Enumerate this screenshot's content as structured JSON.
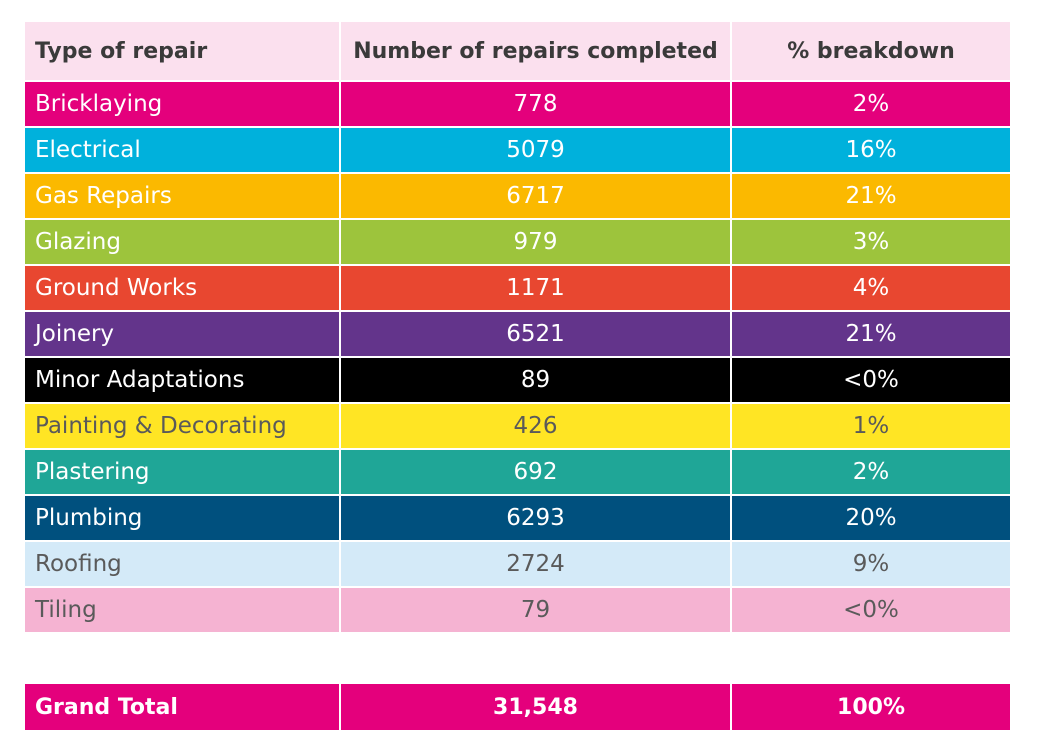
{
  "table": {
    "headers": [
      "Type of repair",
      "Number of repairs completed",
      "% breakdown"
    ],
    "rows": [
      {
        "type": "Bricklaying",
        "count": "778",
        "pct": "2%",
        "bg": "#e4007c",
        "fg": "#ffffff"
      },
      {
        "type": "Electrical",
        "count": "5079",
        "pct": "16%",
        "bg": "#00b1dc",
        "fg": "#ffffff"
      },
      {
        "type": "Gas Repairs",
        "count": "6717",
        "pct": "21%",
        "bg": "#fbb900",
        "fg": "#ffffff"
      },
      {
        "type": "Glazing",
        "count": "979",
        "pct": "3%",
        "bg": "#9dc43c",
        "fg": "#ffffff"
      },
      {
        "type": "Ground Works",
        "count": "1171",
        "pct": "4%",
        "bg": "#e84730",
        "fg": "#ffffff"
      },
      {
        "type": "Joinery",
        "count": "6521",
        "pct": "21%",
        "bg": "#63348b",
        "fg": "#ffffff"
      },
      {
        "type": "Minor Adaptations",
        "count": "89",
        "pct": "<0%",
        "bg": "#000000",
        "fg": "#ffffff"
      },
      {
        "type": "Painting & Decorating",
        "count": "426",
        "pct": "1%",
        "bg": "#ffe524",
        "fg": "#5a5a5a"
      },
      {
        "type": "Plastering",
        "count": "692",
        "pct": "2%",
        "bg": "#1fa697",
        "fg": "#ffffff"
      },
      {
        "type": "Plumbing",
        "count": "6293",
        "pct": "20%",
        "bg": "#00507e",
        "fg": "#ffffff"
      },
      {
        "type": "Roofing",
        "count": "2724",
        "pct": "9%",
        "bg": "#d4eaf8",
        "fg": "#5a5a5a"
      },
      {
        "type": "Tiling",
        "count": "79",
        "pct": "<0%",
        "bg": "#f5b3d2",
        "fg": "#5a5a5a"
      }
    ],
    "total": {
      "label": "Grand Total",
      "count": "31,548",
      "pct": "100%"
    }
  },
  "colors": {
    "header_bg": "#fbe0ee",
    "total_bg": "#e4007c"
  }
}
